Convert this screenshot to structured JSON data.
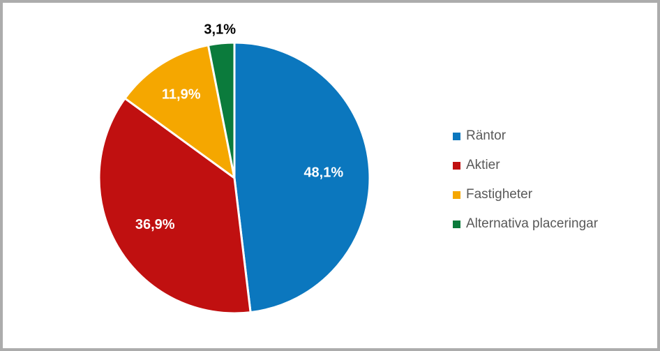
{
  "frame": {
    "border_color": "#ACACAC",
    "background_color": "#FFFFFF"
  },
  "chart_data": {
    "type": "pie",
    "title": "",
    "categories": [
      "Räntor",
      "Aktier",
      "Fastigheter",
      "Alternativa placeringar"
    ],
    "values": [
      48.1,
      36.9,
      11.9,
      3.1
    ],
    "data_labels": [
      "48,1%",
      "36,9%",
      "11,9%",
      "3,1%"
    ],
    "colors": [
      "#0B77BE",
      "#C01010",
      "#F5A700",
      "#0B7B3C"
    ],
    "start_angle_deg": 0,
    "direction": "clockwise",
    "slice_border_color": "#FFFFFF",
    "data_label_color_inside": "#FFFFFF",
    "data_label_color_outside": "#000000",
    "outside_label_threshold_pct": 5,
    "legend_position": "right",
    "legend_text_color": "#595959"
  }
}
